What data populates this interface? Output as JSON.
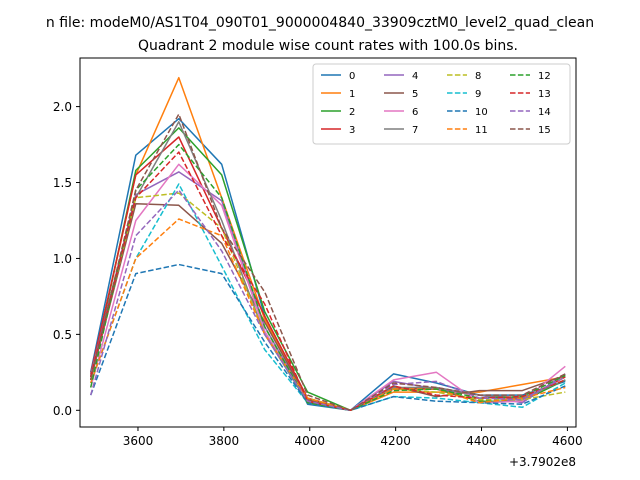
{
  "figure": {
    "suptitle": "n file: modeM0/AS1T04_090T01_9000004840_33909cztM0_level2_quad_clean"
  },
  "chart_data": {
    "type": "line",
    "title": "Quadrant 2 module wise count rates with 100.0s bins.",
    "xlabel": "",
    "ylabel": "",
    "x_offset_label": "+3.7902e8",
    "x": [
      3490,
      3595,
      3695,
      3795,
      3895,
      3995,
      4095,
      4195,
      4295,
      4395,
      4495,
      4595
    ],
    "xlim": [
      3465,
      4620
    ],
    "ylim": [
      -0.11,
      2.32
    ],
    "xticks": [
      3600,
      3800,
      4000,
      4200,
      4400,
      4600
    ],
    "xtick_labels": [
      "3600",
      "3800",
      "4000",
      "4200",
      "4400",
      "4600"
    ],
    "yticks": [
      0.0,
      0.5,
      1.0,
      1.5,
      2.0
    ],
    "ytick_labels": [
      "0.0",
      "0.5",
      "1.0",
      "1.5",
      "2.0"
    ],
    "grid": false,
    "legend_position": "top-right",
    "legend_columns": 4,
    "series": [
      {
        "name": "0",
        "color": "#1f77b4",
        "dashed": false,
        "values": [
          0.25,
          1.68,
          1.92,
          1.62,
          0.62,
          0.04,
          0.0,
          0.24,
          0.18,
          0.1,
          0.1,
          0.19
        ]
      },
      {
        "name": "1",
        "color": "#ff7f0e",
        "dashed": false,
        "values": [
          0.22,
          1.55,
          2.19,
          1.4,
          0.6,
          0.06,
          0.0,
          0.12,
          0.12,
          0.12,
          0.17,
          0.22
        ]
      },
      {
        "name": "2",
        "color": "#2ca02c",
        "dashed": false,
        "values": [
          0.2,
          1.58,
          1.86,
          1.55,
          0.65,
          0.12,
          0.0,
          0.15,
          0.14,
          0.06,
          0.06,
          0.2
        ]
      },
      {
        "name": "3",
        "color": "#d62728",
        "dashed": false,
        "values": [
          0.24,
          1.55,
          1.8,
          1.2,
          0.62,
          0.08,
          0.0,
          0.14,
          0.14,
          0.1,
          0.07,
          0.22
        ]
      },
      {
        "name": "4",
        "color": "#9467bd",
        "dashed": false,
        "values": [
          0.23,
          1.42,
          1.57,
          1.38,
          0.55,
          0.06,
          0.0,
          0.19,
          0.14,
          0.1,
          0.05,
          0.24
        ]
      },
      {
        "name": "5",
        "color": "#8c564b",
        "dashed": false,
        "values": [
          0.2,
          1.36,
          1.35,
          1.1,
          0.58,
          0.07,
          0.0,
          0.16,
          0.09,
          0.13,
          0.13,
          0.23
        ]
      },
      {
        "name": "6",
        "color": "#e377c2",
        "dashed": false,
        "values": [
          0.15,
          1.25,
          1.62,
          1.35,
          0.52,
          0.06,
          0.0,
          0.2,
          0.25,
          0.05,
          0.06,
          0.29
        ]
      },
      {
        "name": "7",
        "color": "#7f7f7f",
        "dashed": false,
        "values": [
          0.22,
          1.4,
          1.9,
          1.25,
          0.5,
          0.05,
          0.0,
          0.15,
          0.15,
          0.1,
          0.08,
          0.2
        ]
      },
      {
        "name": "8",
        "color": "#bcbd22",
        "dashed": true,
        "values": [
          0.2,
          1.4,
          1.43,
          1.2,
          0.5,
          0.08,
          0.0,
          0.14,
          0.12,
          0.07,
          0.07,
          0.12
        ]
      },
      {
        "name": "9",
        "color": "#17becf",
        "dashed": true,
        "values": [
          0.18,
          1.0,
          1.49,
          0.95,
          0.4,
          0.05,
          0.0,
          0.09,
          0.08,
          0.05,
          0.02,
          0.18
        ]
      },
      {
        "name": "10",
        "color": "#1f77b4",
        "dashed": true,
        "values": [
          0.1,
          0.9,
          0.96,
          0.9,
          0.45,
          0.05,
          0.0,
          0.09,
          0.06,
          0.05,
          0.04,
          0.16
        ]
      },
      {
        "name": "11",
        "color": "#ff7f0e",
        "dashed": true,
        "values": [
          0.18,
          1.0,
          1.26,
          1.15,
          0.5,
          0.08,
          0.0,
          0.14,
          0.14,
          0.05,
          0.08,
          0.15
        ]
      },
      {
        "name": "12",
        "color": "#2ca02c",
        "dashed": true,
        "values": [
          0.15,
          1.45,
          1.75,
          1.4,
          0.55,
          0.05,
          0.0,
          0.13,
          0.14,
          0.08,
          0.09,
          0.23
        ]
      },
      {
        "name": "13",
        "color": "#d62728",
        "dashed": true,
        "values": [
          0.22,
          1.4,
          1.7,
          1.15,
          0.7,
          0.06,
          0.0,
          0.16,
          0.1,
          0.08,
          0.09,
          0.2
        ]
      },
      {
        "name": "14",
        "color": "#9467bd",
        "dashed": true,
        "values": [
          0.1,
          1.15,
          1.45,
          1.05,
          0.5,
          0.06,
          0.0,
          0.17,
          0.19,
          0.08,
          0.07,
          0.22
        ]
      },
      {
        "name": "15",
        "color": "#8c564b",
        "dashed": true,
        "values": [
          0.2,
          1.45,
          1.95,
          1.2,
          0.78,
          0.1,
          0.0,
          0.18,
          0.15,
          0.1,
          0.1,
          0.24
        ]
      }
    ]
  }
}
